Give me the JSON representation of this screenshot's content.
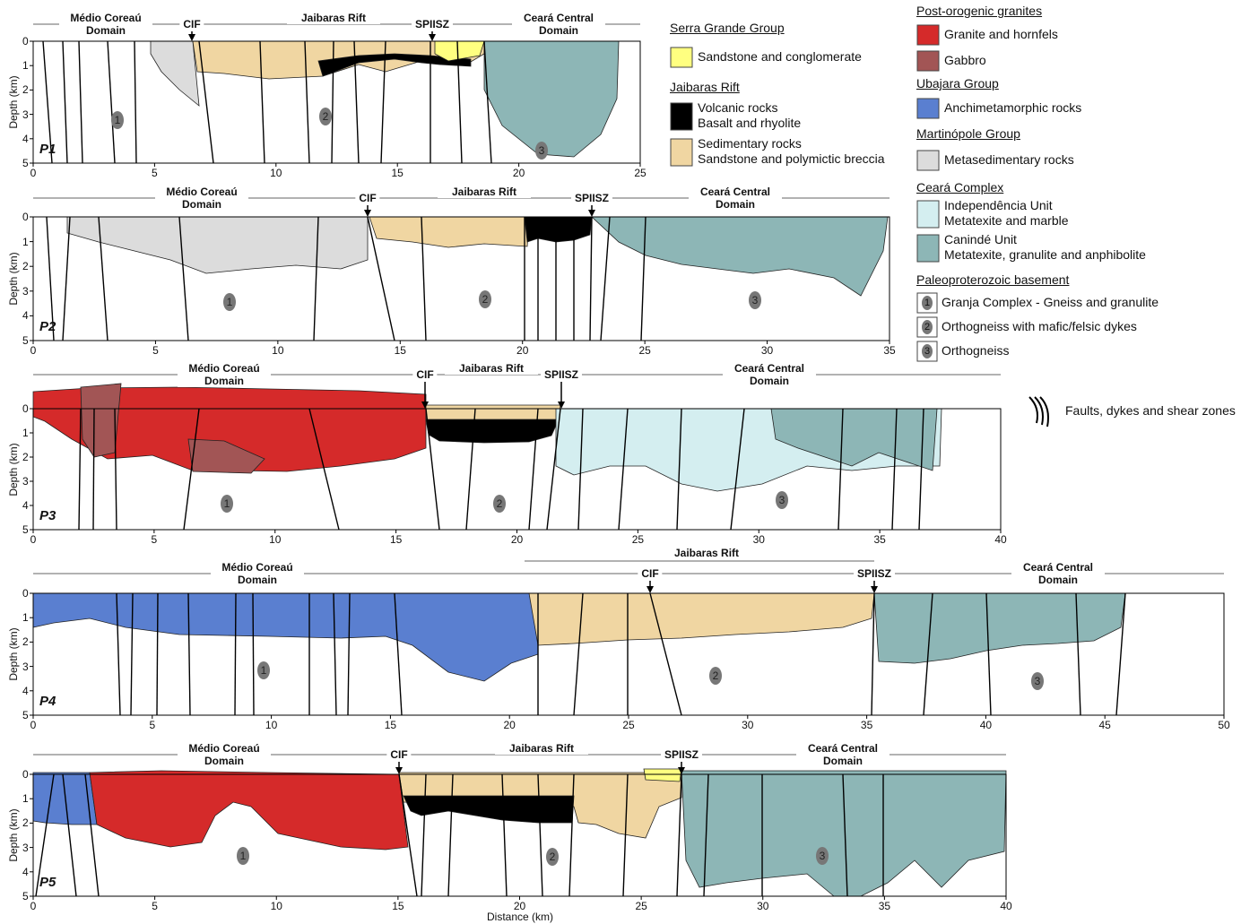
{
  "profiles": [
    {
      "name": "P1",
      "y_label": "Depth (km)",
      "yticks": [
        0,
        1,
        2,
        3,
        4,
        5
      ],
      "xticks": [
        0,
        5,
        10,
        15,
        20,
        25
      ],
      "labels": [
        "Médio Coreaú Domain",
        "CIF",
        "Jaibaras Rift",
        "SPIISZ",
        "Ceará Central Domain"
      ],
      "units": [
        1,
        2,
        3
      ]
    },
    {
      "name": "P2",
      "y_label": "Depth (km)",
      "yticks": [
        0,
        1,
        2,
        3,
        4,
        5
      ],
      "xticks": [
        0,
        5,
        10,
        15,
        20,
        25,
        30,
        35
      ],
      "labels": [
        "Médio Coreaú Domain",
        "CIF",
        "Jaibaras Rift",
        "SPIISZ",
        "Ceará Central Domain"
      ],
      "units": [
        1,
        2,
        3
      ]
    },
    {
      "name": "P3",
      "y_label": "Depth (km)",
      "yticks": [
        0,
        1,
        2,
        3,
        4,
        5
      ],
      "xticks": [
        0,
        5,
        10,
        15,
        20,
        25,
        30,
        35,
        40
      ],
      "labels": [
        "Médio Coreaú Domain",
        "CIF",
        "Jaibaras Rift",
        "SPIISZ",
        "Ceará Central Domain"
      ],
      "units": [
        1,
        2,
        3
      ]
    },
    {
      "name": "P4",
      "y_label": "Depth (km)",
      "yticks": [
        0,
        1,
        2,
        3,
        4,
        5
      ],
      "xticks": [
        0,
        5,
        10,
        15,
        20,
        25,
        30,
        35,
        40,
        45,
        50
      ],
      "labels": [
        "Médio Coreaú Domain",
        "CIF",
        "Jaibaras Rift",
        "SPIISZ",
        "Ceará Central Domain"
      ],
      "units": [
        1,
        2,
        3
      ]
    },
    {
      "name": "P5",
      "y_label": "Depth (km)",
      "yticks": [
        0,
        1,
        2,
        3,
        4,
        5
      ],
      "xticks": [
        0,
        5,
        10,
        15,
        20,
        25,
        30,
        35,
        40
      ],
      "labels": [
        "Médio Coreaú Domain",
        "CIF",
        "Jaibaras Rift",
        "SPIISZ",
        "Ceará Central Domain"
      ],
      "units": [
        1,
        2,
        3
      ]
    }
  ],
  "x_label": "Distance (km)",
  "legend": [
    {
      "title": "Serra Grande Group",
      "items": [
        {
          "lines": [
            "Sandstone and conglomerate"
          ],
          "color": "#ffff80"
        }
      ]
    },
    {
      "title": "Jaibaras Rift",
      "items": [
        {
          "lines": [
            "Volcanic rocks",
            "Basalt and rhyolite"
          ],
          "color": "#000000"
        },
        {
          "lines": [
            "Sedimentary rocks",
            "Sandstone and polymictic breccia"
          ],
          "color": "#f0d6a2"
        }
      ]
    },
    {
      "title": "Post-orogenic granites",
      "items": [
        {
          "lines": [
            "Granite and hornfels"
          ],
          "color": "#d52a2a"
        },
        {
          "lines": [
            "Gabbro"
          ],
          "color": "#a25555"
        }
      ]
    },
    {
      "title": "Ubajara Group",
      "items": [
        {
          "lines": [
            "Anchimetamorphic rocks"
          ],
          "color": "#5a7fd0"
        }
      ]
    },
    {
      "title": "Martinópole Group",
      "items": [
        {
          "lines": [
            "Metasedimentary rocks"
          ],
          "color": "#dcdcdc"
        }
      ]
    },
    {
      "title": "Ceará Complex",
      "items": [
        {
          "lines": [
            "Independência Unit",
            "Metatexite and marble"
          ],
          "color": "#d4eef0"
        },
        {
          "lines": [
            "Canindé Unit",
            "Metatexite, granulite and anphibolite"
          ],
          "color": "#8db6b6"
        }
      ]
    },
    {
      "title": "Paleoproterozoic basement",
      "items": [
        {
          "symbol": 1,
          "lines": [
            "Granja Complex - Gneiss and granulite"
          ]
        },
        {
          "symbol": 2,
          "lines": [
            "Orthogneiss with mafic/felsic dykes"
          ]
        },
        {
          "symbol": 3,
          "lines": [
            "Orthogneiss"
          ]
        }
      ]
    }
  ],
  "faults_legend": "Faults, dykes and shear zones"
}
